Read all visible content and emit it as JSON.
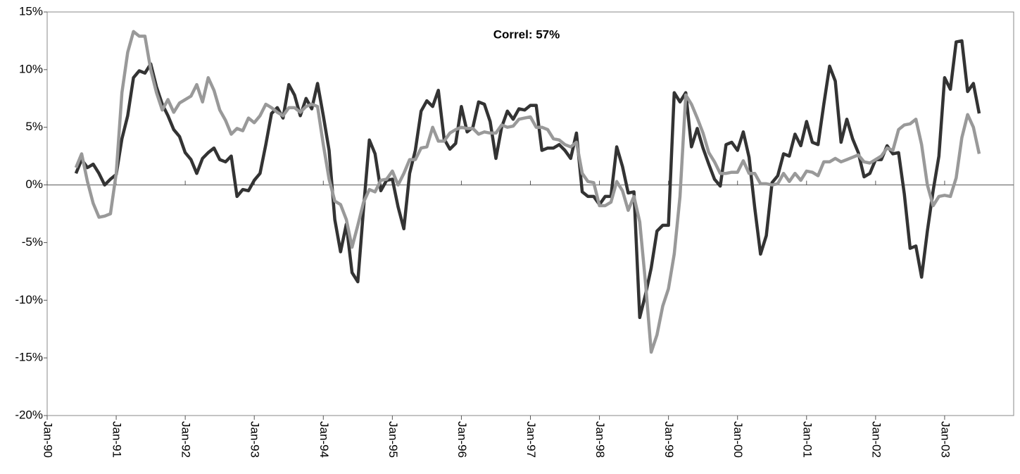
{
  "chart_data": {
    "type": "line",
    "annotation": "Correl: 57%",
    "x": [
      "1990-06",
      "1990-07",
      "1990-08",
      "1990-09",
      "1990-10",
      "1990-11",
      "1990-12",
      "1991-01",
      "1991-02",
      "1991-03",
      "1991-04",
      "1991-05",
      "1991-06",
      "1991-07",
      "1991-08",
      "1991-09",
      "1991-10",
      "1991-11",
      "1991-12",
      "1992-01",
      "1992-02",
      "1992-03",
      "1992-04",
      "1992-05",
      "1992-06",
      "1992-07",
      "1992-08",
      "1992-09",
      "1992-10",
      "1992-11",
      "1992-12",
      "1993-01",
      "1993-02",
      "1993-03",
      "1993-04",
      "1993-05",
      "1993-06",
      "1993-07",
      "1993-08",
      "1993-09",
      "1993-10",
      "1993-11",
      "1993-12",
      "1994-01",
      "1994-02",
      "1994-03",
      "1994-04",
      "1994-05",
      "1994-06",
      "1994-07",
      "1994-08",
      "1994-09",
      "1994-10",
      "1994-11",
      "1994-12",
      "1995-01",
      "1995-02",
      "1995-03",
      "1995-04",
      "1995-05",
      "1995-06",
      "1995-07",
      "1995-08",
      "1995-09",
      "1995-10",
      "1995-11",
      "1995-12",
      "1996-01",
      "1996-02",
      "1996-03",
      "1996-04",
      "1996-05",
      "1996-06",
      "1996-07",
      "1996-08",
      "1996-09",
      "1996-10",
      "1996-11",
      "1996-12",
      "1997-01",
      "1997-02",
      "1997-03",
      "1997-04",
      "1997-05",
      "1997-06",
      "1997-07",
      "1997-08",
      "1997-09",
      "1997-10",
      "1997-11",
      "1997-12",
      "1998-01",
      "1998-02",
      "1998-03",
      "1998-04",
      "1998-05",
      "1998-06",
      "1998-07",
      "1998-08",
      "1998-09",
      "1998-10",
      "1998-11",
      "1998-12",
      "1999-01",
      "1999-02",
      "1999-03",
      "1999-04",
      "1999-05",
      "1999-06",
      "1999-07",
      "1999-08",
      "1999-09",
      "1999-10",
      "1999-11",
      "1999-12",
      "2000-01",
      "2000-02",
      "2000-03",
      "2000-04",
      "2000-05",
      "2000-06",
      "2000-07",
      "2000-08",
      "2000-09",
      "2000-10",
      "2000-11",
      "2000-12",
      "2001-01",
      "2001-02",
      "2001-03",
      "2001-04",
      "2001-05",
      "2001-06",
      "2001-07",
      "2001-08",
      "2001-09",
      "2001-10",
      "2001-11",
      "2001-12",
      "2002-01",
      "2002-02",
      "2002-03",
      "2002-04",
      "2002-05",
      "2002-06",
      "2002-07",
      "2002-08",
      "2002-09",
      "2002-10",
      "2002-11",
      "2002-12",
      "2003-01",
      "2003-02",
      "2003-03",
      "2003-04",
      "2003-05",
      "2003-06",
      "2003-07"
    ],
    "series": [
      {
        "color": "#333333",
        "values": [
          1.0,
          2.2,
          1.5,
          1.8,
          1.0,
          0.0,
          0.5,
          0.9,
          4.0,
          6.0,
          9.3,
          9.9,
          9.7,
          10.5,
          8.5,
          7.0,
          6.0,
          4.8,
          4.2,
          2.8,
          2.2,
          1.0,
          2.3,
          2.8,
          3.2,
          2.2,
          2.0,
          2.5,
          -1.0,
          -0.4,
          -0.5,
          0.4,
          1.0,
          3.5,
          6.2,
          6.7,
          5.8,
          8.7,
          7.8,
          6.0,
          7.5,
          6.6,
          8.8,
          6.0,
          3.0,
          -3.0,
          -5.8,
          -3.4,
          -7.6,
          -8.4,
          -2.0,
          3.9,
          2.7,
          -0.5,
          0.4,
          0.5,
          -1.9,
          -3.8,
          1.0,
          3.0,
          6.4,
          7.3,
          6.8,
          8.2,
          4.0,
          3.1,
          3.6,
          6.8,
          4.6,
          5.0,
          7.2,
          7.0,
          5.5,
          2.3,
          5.0,
          6.4,
          5.7,
          6.6,
          6.5,
          6.9,
          6.9,
          3.0,
          3.2,
          3.2,
          3.5,
          3.0,
          2.3,
          4.5,
          -0.6,
          -1.0,
          -1.0,
          -1.7,
          -1.0,
          -1.0,
          3.3,
          1.6,
          -0.7,
          -0.6,
          -11.5,
          -9.5,
          -7.2,
          -4.0,
          -3.5,
          -3.5,
          8.0,
          7.2,
          8.0,
          3.3,
          4.9,
          3.2,
          1.8,
          0.5,
          -0.1,
          3.5,
          3.7,
          3.0,
          4.6,
          2.4,
          -2.0,
          -6.0,
          -4.4,
          0.2,
          0.8,
          2.7,
          2.5,
          4.4,
          3.4,
          5.5,
          3.7,
          3.5,
          7.0,
          10.3,
          9.0,
          3.7,
          5.7,
          4.0,
          2.8,
          0.7,
          1.0,
          2.2,
          2.2,
          3.4,
          2.7,
          2.8,
          -0.8,
          -5.5,
          -5.3,
          -8.0,
          -4.0,
          -0.5,
          2.5,
          9.3,
          8.3,
          12.4,
          12.5,
          8.1,
          8.8,
          6.2
        ]
      },
      {
        "color": "#999999",
        "values": [
          1.5,
          2.7,
          0.3,
          -1.6,
          -2.8,
          -2.7,
          -2.5,
          1.0,
          8.0,
          11.5,
          13.3,
          12.9,
          12.9,
          10.0,
          8.0,
          6.5,
          7.4,
          6.3,
          7.1,
          7.4,
          7.7,
          8.7,
          7.2,
          9.3,
          8.2,
          6.5,
          5.6,
          4.4,
          4.9,
          4.7,
          5.8,
          5.4,
          6.0,
          7.0,
          6.7,
          6.3,
          6.0,
          6.7,
          6.7,
          6.3,
          6.8,
          7.0,
          6.8,
          3.5,
          0.5,
          -1.4,
          -1.7,
          -3.0,
          -5.4,
          -3.5,
          -1.5,
          -0.4,
          -0.6,
          0.4,
          0.5,
          1.2,
          0.0,
          1.0,
          2.2,
          2.2,
          3.2,
          3.3,
          5.0,
          3.8,
          3.8,
          4.5,
          4.8,
          5.0,
          4.9,
          4.9,
          4.4,
          4.6,
          4.5,
          4.5,
          5.2,
          5.0,
          5.1,
          5.7,
          5.8,
          5.9,
          5.0,
          5.0,
          4.8,
          4.0,
          3.9,
          3.5,
          3.3,
          3.7,
          1.0,
          0.3,
          0.2,
          -1.8,
          -1.8,
          -1.5,
          0.3,
          -0.5,
          -2.2,
          -1.0,
          -3.2,
          -8.5,
          -14.5,
          -13.0,
          -10.5,
          -9.0,
          -6.0,
          -1.0,
          7.8,
          7.0,
          5.8,
          4.5,
          2.8,
          2.0,
          1.0,
          1.0,
          1.1,
          1.1,
          2.1,
          1.0,
          1.0,
          0.1,
          0.1,
          0.0,
          0.1,
          1.0,
          0.3,
          1.0,
          0.4,
          1.2,
          1.1,
          0.8,
          2.0,
          2.0,
          2.3,
          2.0,
          2.2,
          2.4,
          2.6,
          2.0,
          1.9,
          2.2,
          2.5,
          3.2,
          3.0,
          4.8,
          5.2,
          5.3,
          5.7,
          3.5,
          0.0,
          -1.8,
          -1.0,
          -0.9,
          -1.0,
          0.6,
          4.1,
          6.1,
          5.0,
          2.7
        ]
      }
    ],
    "xlim": [
      "1990-01",
      "2004-01"
    ],
    "xticks": [
      {
        "value": "1990-01",
        "label": "Jan-90"
      },
      {
        "value": "1991-01",
        "label": "Jan-91"
      },
      {
        "value": "1992-01",
        "label": "Jan-92"
      },
      {
        "value": "1993-01",
        "label": "Jan-93"
      },
      {
        "value": "1994-01",
        "label": "Jan-94"
      },
      {
        "value": "1995-01",
        "label": "Jan-95"
      },
      {
        "value": "1996-01",
        "label": "Jan-96"
      },
      {
        "value": "1997-01",
        "label": "Jan-97"
      },
      {
        "value": "1998-01",
        "label": "Jan-98"
      },
      {
        "value": "1999-01",
        "label": "Jan-99"
      },
      {
        "value": "2000-01",
        "label": "Jan-00"
      },
      {
        "value": "2001-01",
        "label": "Jan-01"
      },
      {
        "value": "2002-01",
        "label": "Jan-02"
      },
      {
        "value": "2003-01",
        "label": "Jan-03"
      }
    ],
    "ylim": [
      -20,
      15
    ],
    "yticks": [
      {
        "value": -20,
        "label": "-20%"
      },
      {
        "value": -15,
        "label": "-15%"
      },
      {
        "value": -10,
        "label": "-10%"
      },
      {
        "value": -5,
        "label": "-5%"
      },
      {
        "value": 0,
        "label": "0%"
      },
      {
        "value": 5,
        "label": "5%"
      },
      {
        "value": 10,
        "label": "10%"
      },
      {
        "value": 15,
        "label": "15%"
      }
    ],
    "grid": false
  }
}
